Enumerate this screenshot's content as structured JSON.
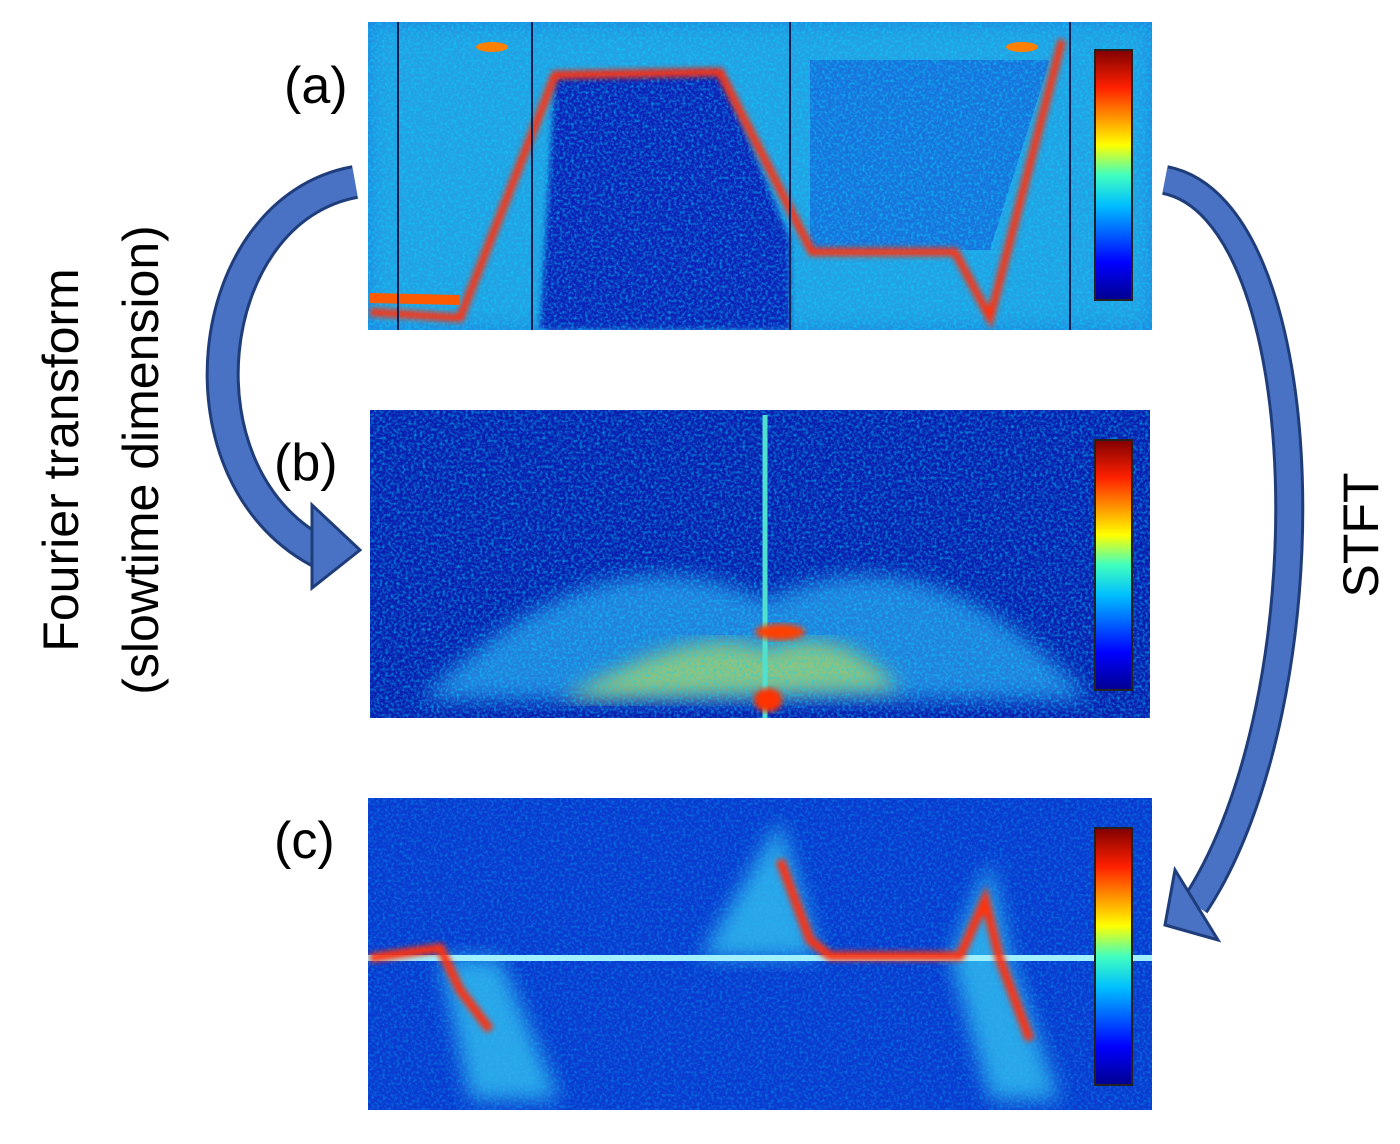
{
  "panels": [
    {
      "label": "(a)"
    },
    {
      "label": "(b)"
    },
    {
      "label": "(c)"
    }
  ],
  "left_caption": {
    "lines": [
      "Fourier transform",
      "(slowtime dimension)"
    ]
  },
  "right_caption": "STFT"
}
